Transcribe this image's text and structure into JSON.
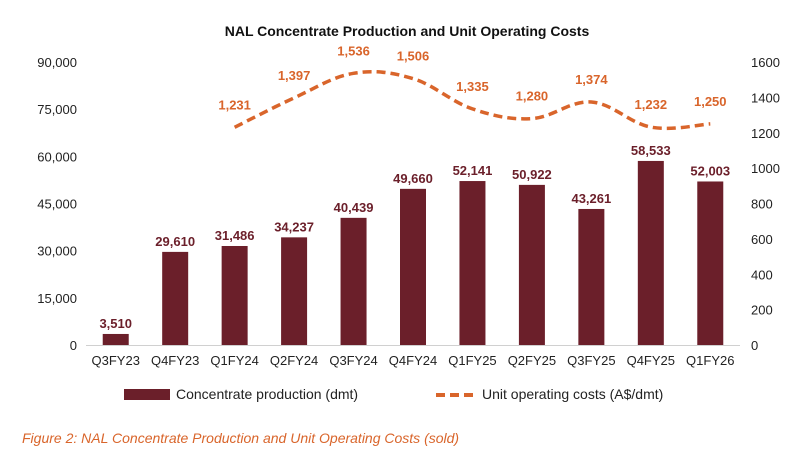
{
  "chart_data": {
    "type": "bar",
    "title": "NAL Concentrate Production and Unit Operating Costs",
    "categories": [
      "Q3FY23",
      "Q4FY23",
      "Q1FY24",
      "Q2FY24",
      "Q3FY24",
      "Q4FY24",
      "Q1FY25",
      "Q2FY25",
      "Q3FY25",
      "Q4FY25",
      "Q1FY26"
    ],
    "series": [
      {
        "name": "Concentrate production (dmt)",
        "type": "bar",
        "axis": "left",
        "values": [
          3510,
          29610,
          31486,
          34237,
          40439,
          49660,
          52141,
          50922,
          43261,
          58533,
          52003
        ],
        "labels": [
          "3,510",
          "29,610",
          "31,486",
          "34,237",
          "40,439",
          "49,660",
          "52,141",
          "50,922",
          "43,261",
          "58,533",
          "52,003"
        ]
      },
      {
        "name": "Unit operating costs (A$/dmt)",
        "type": "line",
        "style": "dashed",
        "axis": "right",
        "values": [
          null,
          null,
          1231,
          1397,
          1536,
          1506,
          1335,
          1280,
          1374,
          1232,
          1250
        ],
        "labels": [
          "",
          "",
          "1,231",
          "1,397",
          "1,536",
          "1,506",
          "1,335",
          "1,280",
          "1,374",
          "1,232",
          "1,250"
        ]
      }
    ],
    "y_left": {
      "range": [
        0,
        90000
      ],
      "ticks": [
        "0",
        "15,000",
        "30,000",
        "45,000",
        "60,000",
        "75,000",
        "90,000"
      ],
      "tick_values": [
        0,
        15000,
        30000,
        45000,
        60000,
        75000,
        90000
      ]
    },
    "y_right": {
      "range": [
        0,
        1600
      ],
      "ticks": [
        "0",
        "200",
        "400",
        "600",
        "800",
        "1000",
        "1200",
        "1400",
        "1600"
      ],
      "tick_values": [
        0,
        200,
        400,
        600,
        800,
        1000,
        1200,
        1400,
        1600
      ]
    },
    "grid": false,
    "legend_position": "bottom-center"
  },
  "colors": {
    "bar": "#6b1f2a",
    "line": "#d9652b",
    "bar_label": "#6b1f2a",
    "line_label": "#d9652b",
    "caption": "#d9652b"
  },
  "caption": "Figure 2: NAL Concentrate Production and Unit Operating Costs (sold)"
}
